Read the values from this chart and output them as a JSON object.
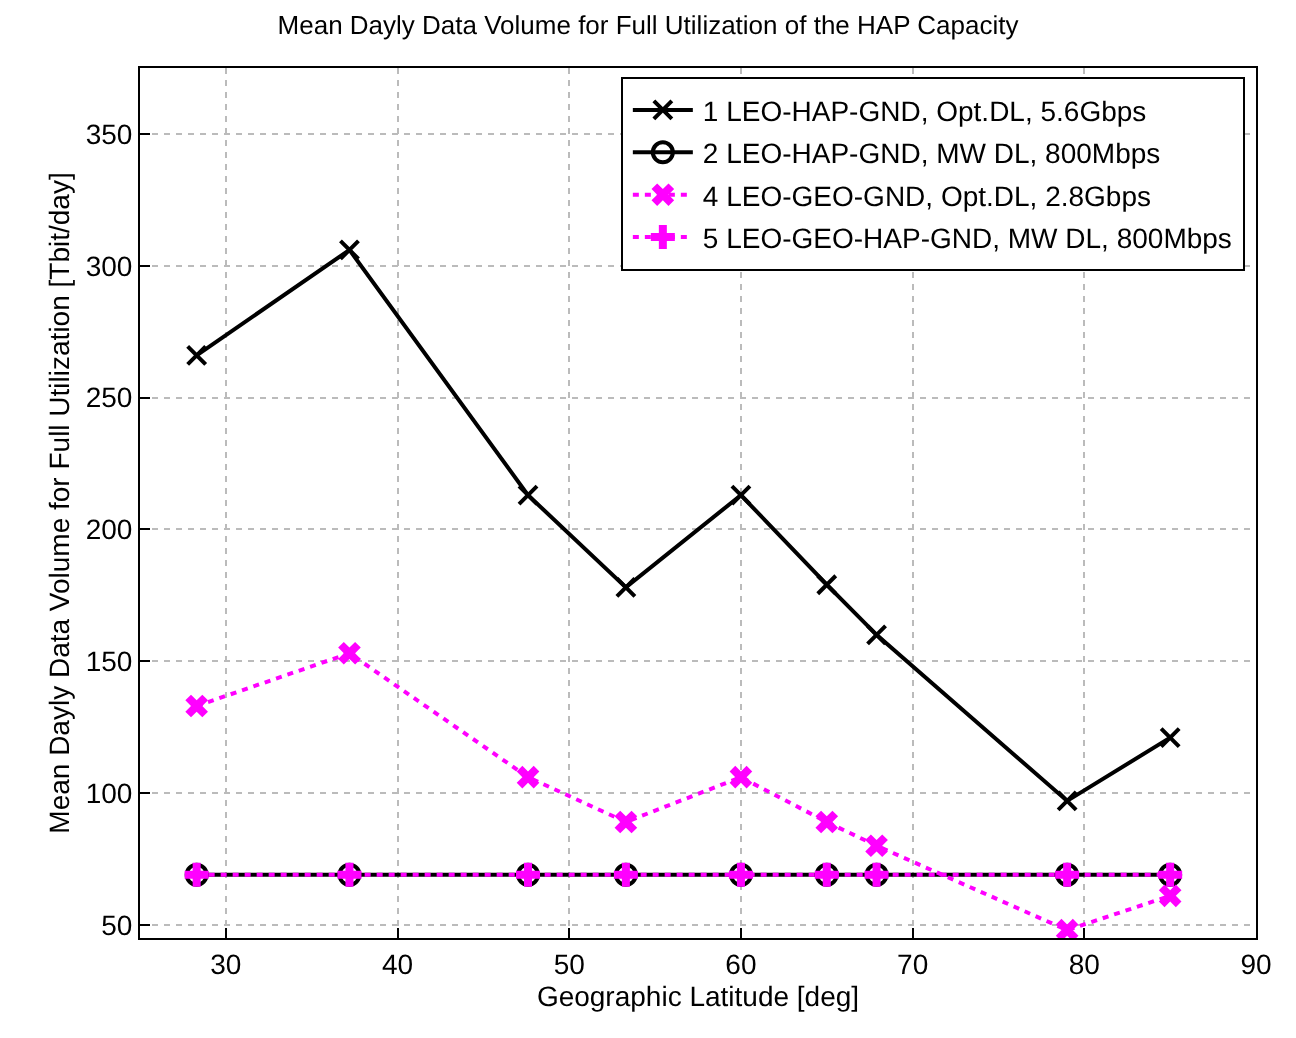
{
  "chart_data": {
    "type": "line",
    "title": "Mean Dayly Data Volume for Full Utilization of the HAP Capacity",
    "xlabel": "Geographic Latitude [deg]",
    "ylabel": "Mean Dayly Data Volume for Full Utilization [Tbit/day]",
    "x": [
      28.3,
      37.2,
      47.6,
      53.3,
      60,
      65,
      67.9,
      79,
      85
    ],
    "series": [
      {
        "name": "1 LEO-HAP-GND, Opt.DL, 5.6Gbps",
        "color": "#000000",
        "marker": "cross",
        "line_style": "solid",
        "values": [
          266,
          306,
          213,
          178,
          213,
          179,
          160,
          97,
          121
        ]
      },
      {
        "name": "2 LEO-HAP-GND, MW DL, 800Mbps",
        "color": "#000000",
        "marker": "circle",
        "line_style": "solid",
        "values": [
          69,
          69,
          69,
          69,
          69,
          69,
          69,
          69,
          69
        ]
      },
      {
        "name": "4 LEO-GEO-GND, Opt.DL, 2.8Gbps",
        "color": "#ff00ff",
        "marker": "cross",
        "line_style": "dotted",
        "values": [
          133,
          153,
          106,
          89,
          106,
          89,
          80,
          48,
          61
        ]
      },
      {
        "name": "5 LEO-GEO-HAP-GND, MW DL, 800Mbps",
        "color": "#ff00ff",
        "marker": "plus",
        "line_style": "dotted",
        "values": [
          69,
          69,
          69,
          69,
          69,
          69,
          69,
          69,
          69
        ]
      }
    ],
    "xlim": [
      25,
      90
    ],
    "xticks": [
      30,
      40,
      50,
      60,
      70,
      80,
      90
    ],
    "ylim": [
      45,
      375
    ],
    "yticks": [
      50,
      100,
      150,
      200,
      250,
      300,
      350
    ],
    "grid": true,
    "legend": "top right"
  }
}
